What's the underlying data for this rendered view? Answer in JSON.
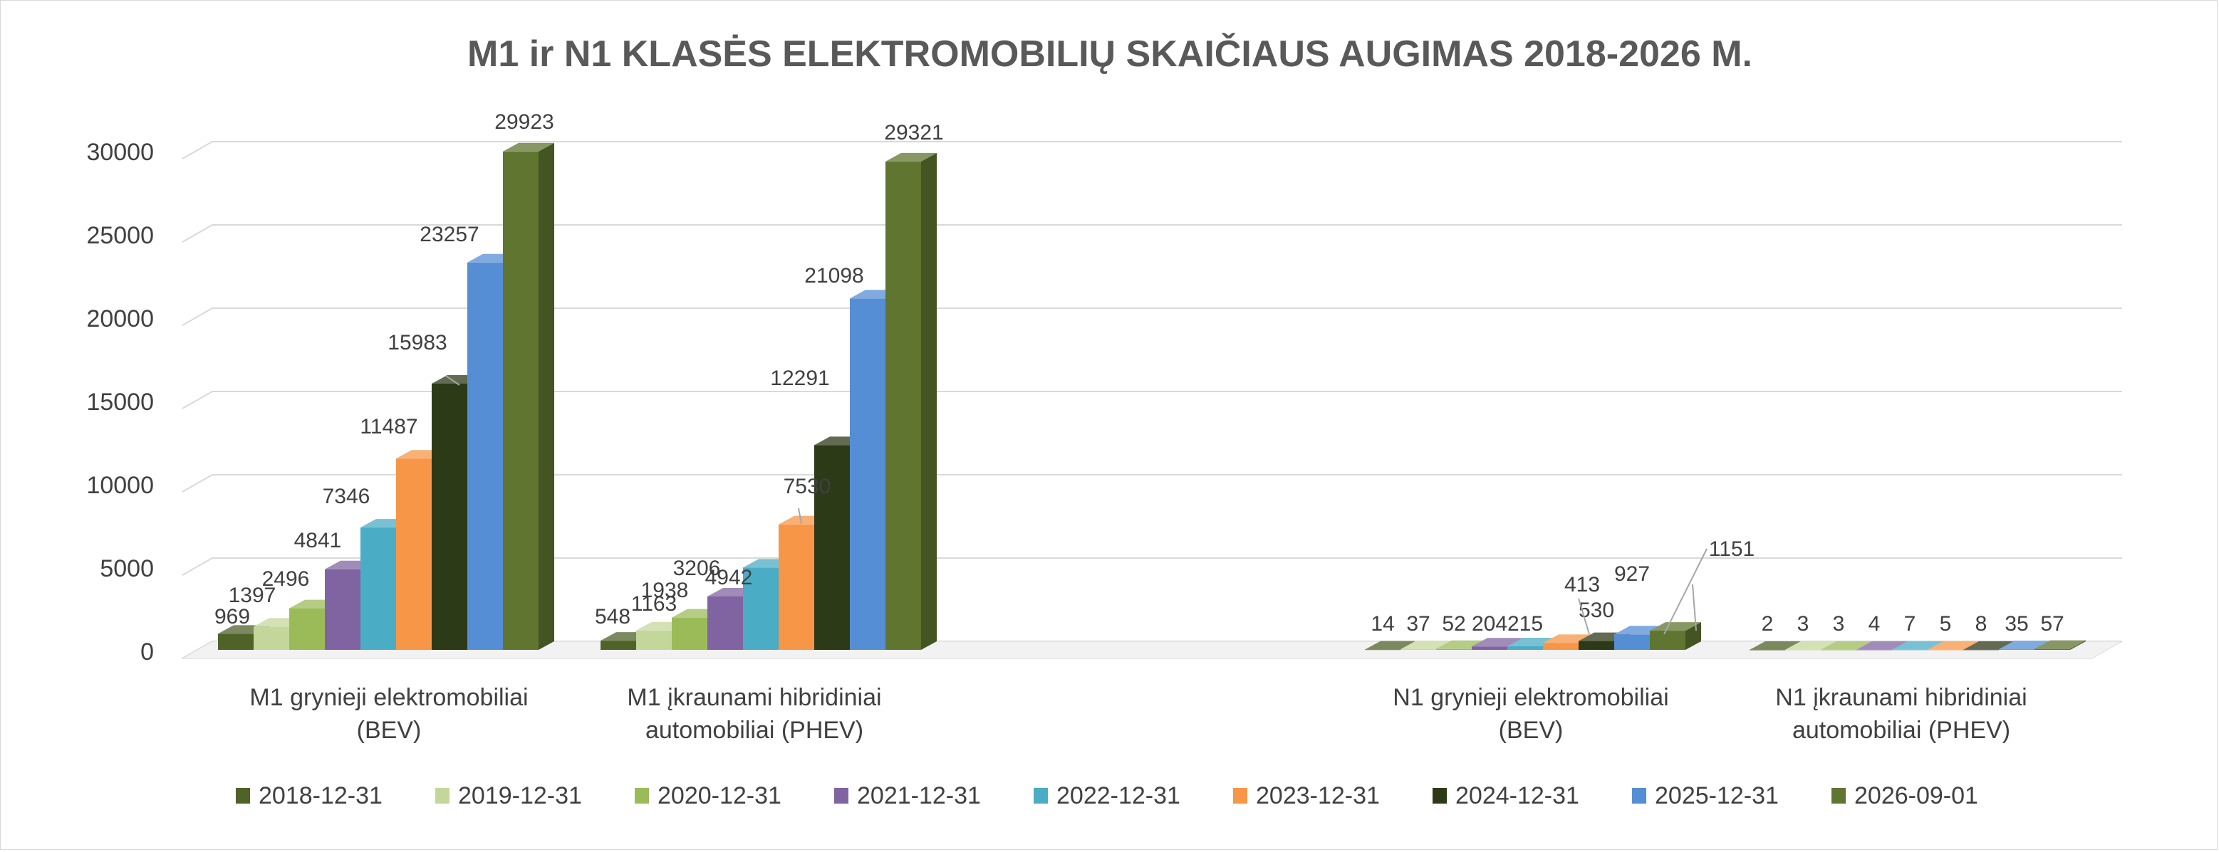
{
  "chart_data": {
    "type": "bar",
    "title": "M1 ir N1 KLASĖS ELEKTROMOBILIŲ SKAIČIAUS AUGIMAS 2018-2026 M.",
    "categories": [
      [
        "M1 grynieji elektromobiliai",
        "(BEV)"
      ],
      [
        "M1 įkraunami hibridiniai",
        "automobiliai (PHEV)"
      ],
      [
        "",
        ""
      ],
      [
        "N1 grynieji elektromobiliai",
        "(BEV)"
      ],
      [
        "N1 įkraunami hibridiniai",
        "automobiliai (PHEV)"
      ]
    ],
    "ylim": [
      0,
      30000
    ],
    "yticks": [
      "0",
      "5000",
      "10000",
      "15000",
      "20000",
      "25000",
      "30000"
    ],
    "grid": true,
    "legend_position": "bottom",
    "series": [
      {
        "name": "2018-12-31",
        "color": "#4f6228",
        "values": [
          969,
          548,
          null,
          14,
          2
        ]
      },
      {
        "name": "2019-12-31",
        "color": "#c4d79b",
        "values": [
          1397,
          1163,
          null,
          37,
          3
        ]
      },
      {
        "name": "2020-12-31",
        "color": "#9bbb59",
        "values": [
          2496,
          1938,
          null,
          52,
          3
        ]
      },
      {
        "name": "2021-12-31",
        "color": "#8064a2",
        "values": [
          4841,
          3206,
          null,
          204,
          4
        ]
      },
      {
        "name": "2022-12-31",
        "color": "#4bacc6",
        "values": [
          7346,
          4942,
          null,
          215,
          7
        ]
      },
      {
        "name": "2023-12-31",
        "color": "#f79646",
        "values": [
          11487,
          7530,
          null,
          413,
          5
        ]
      },
      {
        "name": "2024-12-31",
        "color": "#2d3a18",
        "values": [
          15983,
          12291,
          null,
          530,
          8
        ]
      },
      {
        "name": "2025-12-31",
        "color": "#558ed5",
        "values": [
          23257,
          21098,
          null,
          927,
          35
        ]
      },
      {
        "name": "2026-09-01",
        "color": "#5f7530",
        "values": [
          29923,
          29321,
          null,
          1151,
          57
        ]
      }
    ]
  }
}
